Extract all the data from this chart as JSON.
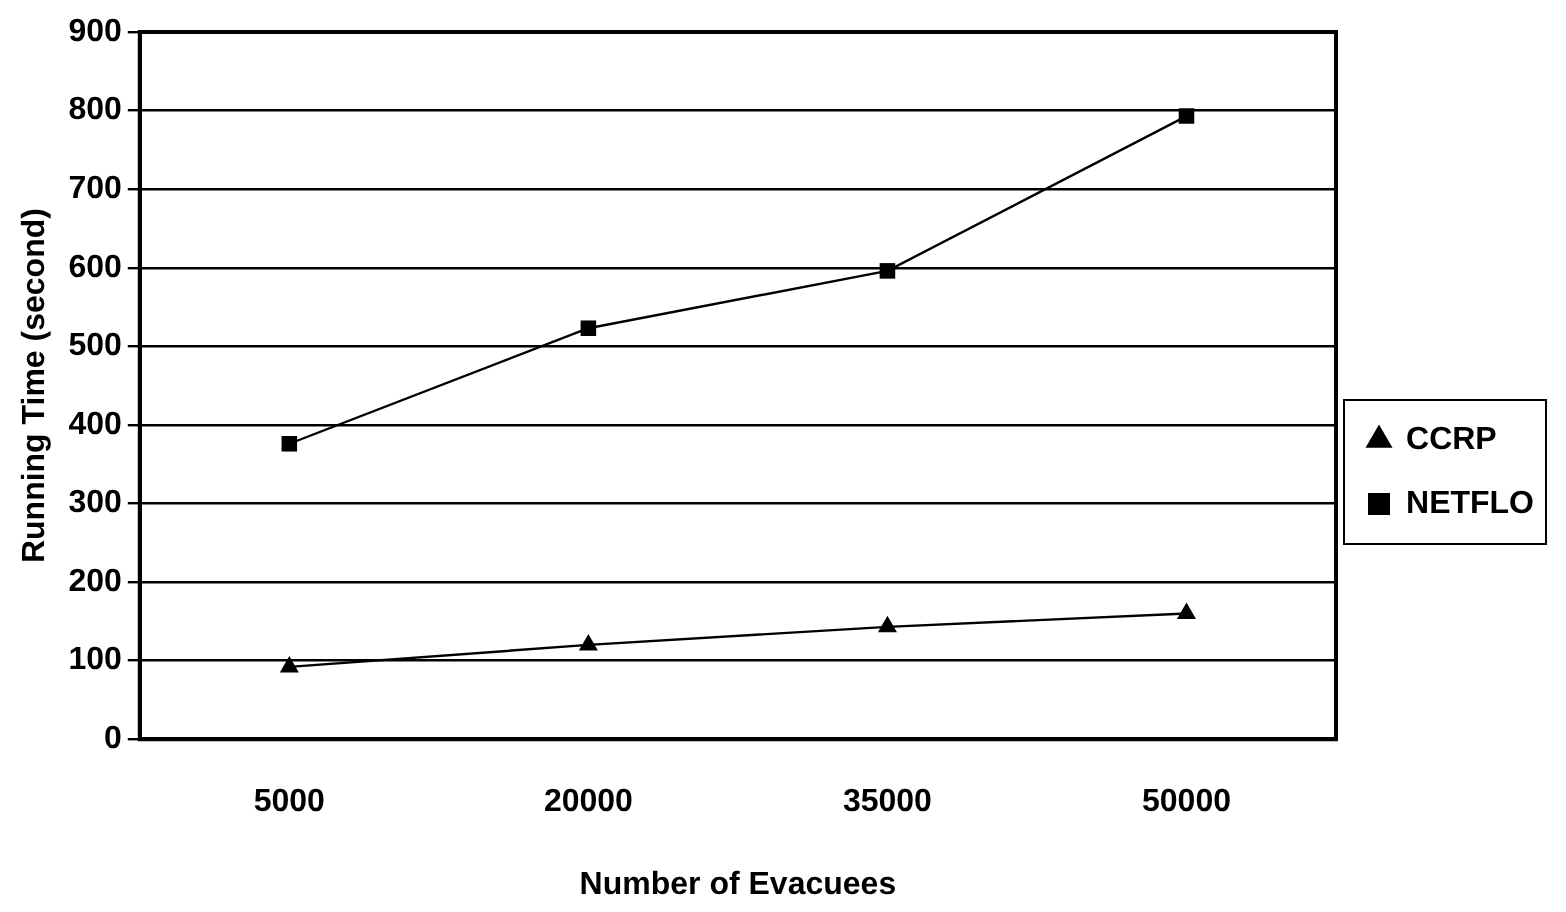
{
  "chart_data": {
    "type": "line",
    "xlabel": "Number of Evacuees",
    "ylabel": "Running Time (second)",
    "categories": [
      "5000",
      "20000",
      "35000",
      "50000"
    ],
    "series": [
      {
        "name": "CCRP",
        "color": "#000000",
        "marker": "triangle",
        "values": [
          92,
          120,
          143,
          160
        ]
      },
      {
        "name": "NETFLO",
        "color": "#000000",
        "marker": "square",
        "values": [
          376,
          523,
          596,
          793
        ]
      }
    ],
    "ylim": [
      0,
      900
    ],
    "yticks": [
      0,
      100,
      200,
      300,
      400,
      500,
      600,
      700,
      800,
      900
    ],
    "grid": "y",
    "legend": "right",
    "line_style": "solid"
  }
}
